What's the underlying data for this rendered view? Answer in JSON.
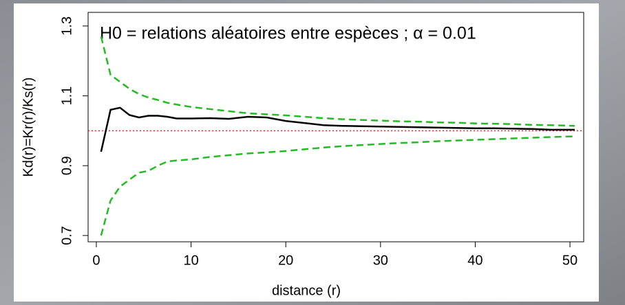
{
  "chart_data": {
    "type": "line",
    "title": "H0 = relations aléatoires entre espèces ; α = 0.01",
    "x_label": "distance (r)",
    "y_label": "Kd(r)=Kr(r)/Ks(r)",
    "x": [
      0.5,
      1.5,
      2.5,
      3.5,
      4.5,
      5.5,
      6.5,
      7.5,
      8.5,
      10,
      12,
      14,
      16,
      18,
      20,
      22,
      24,
      26,
      28,
      30,
      32,
      34,
      36,
      38,
      40,
      42,
      44,
      46,
      48,
      50.5
    ],
    "series": [
      {
        "color": "#000000",
        "style": "solid",
        "values": [
          0.94,
          1.06,
          1.066,
          1.045,
          1.038,
          1.043,
          1.043,
          1.04,
          1.035,
          1.035,
          1.036,
          1.034,
          1.04,
          1.038,
          1.028,
          1.022,
          1.016,
          1.014,
          1.013,
          1.012,
          1.011,
          1.01,
          1.009,
          1.008,
          1.007,
          1.007,
          1.006,
          1.005,
          1.003,
          1.003
        ]
      },
      {
        "color": "#22bb22",
        "style": "dashed",
        "values": [
          1.27,
          1.16,
          1.14,
          1.12,
          1.105,
          1.095,
          1.088,
          1.08,
          1.075,
          1.068,
          1.062,
          1.056,
          1.05,
          1.047,
          1.044,
          1.04,
          1.036,
          1.033,
          1.031,
          1.029,
          1.027,
          1.026,
          1.024,
          1.023,
          1.021,
          1.02,
          1.019,
          1.017,
          1.016,
          1.014
        ]
      },
      {
        "color": "#22bb22",
        "style": "dashed",
        "values": [
          0.7,
          0.8,
          0.84,
          0.86,
          0.88,
          0.885,
          0.9,
          0.912,
          0.915,
          0.918,
          0.925,
          0.93,
          0.935,
          0.938,
          0.942,
          0.947,
          0.952,
          0.956,
          0.959,
          0.962,
          0.965,
          0.967,
          0.97,
          0.972,
          0.974,
          0.976,
          0.978,
          0.98,
          0.982,
          0.984
        ]
      }
    ],
    "reference_line": {
      "value": 1,
      "color": "#ee2222"
    },
    "xlim": [
      -0.87,
      51.45
    ],
    "ylim": [
      0.682,
      1.339
    ],
    "xticks": [
      0,
      10,
      20,
      30,
      40,
      50
    ],
    "yticks": [
      0.7,
      0.9,
      1.1,
      1.3
    ]
  }
}
